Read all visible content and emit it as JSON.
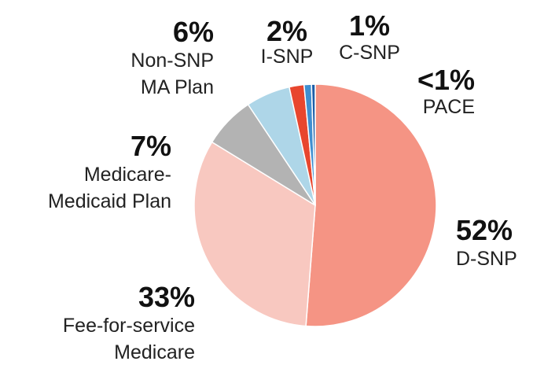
{
  "chart_data": {
    "type": "pie",
    "start_angle_deg": 0,
    "direction": "clockwise",
    "slices": [
      {
        "label_lines": [
          "D-SNP"
        ],
        "pct_label": "52%",
        "value": 52,
        "color": "#f59484"
      },
      {
        "label_lines": [
          "Fee-for-service",
          "Medicare"
        ],
        "pct_label": "33%",
        "value": 33,
        "color": "#f8c8c0"
      },
      {
        "label_lines": [
          "Medicare-",
          "Medicaid Plan"
        ],
        "pct_label": "7%",
        "value": 7,
        "color": "#b3b3b3"
      },
      {
        "label_lines": [
          "Non-SNP",
          "MA Plan"
        ],
        "pct_label": "6%",
        "value": 6,
        "color": "#aed6e8"
      },
      {
        "label_lines": [
          "I-SNP"
        ],
        "pct_label": "2%",
        "value": 2,
        "color": "#e8462e"
      },
      {
        "label_lines": [
          "C-SNP"
        ],
        "pct_label": "1%",
        "value": 1,
        "color": "#3f8fd0"
      },
      {
        "label_lines": [
          "PACE"
        ],
        "pct_label": "<1%",
        "value": 0.5,
        "color": "#1c5ea8"
      }
    ]
  }
}
